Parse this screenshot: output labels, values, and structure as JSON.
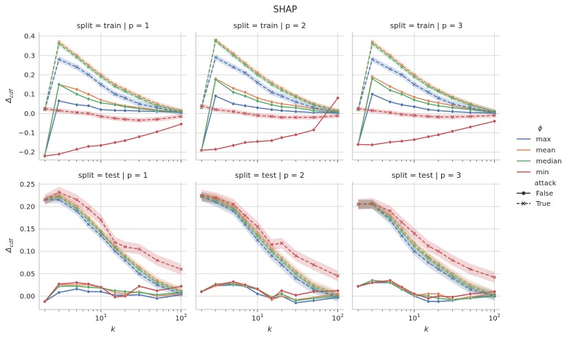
{
  "figure": {
    "suptitle": "SHAP",
    "xlabel": "k",
    "ylabel": "Δ",
    "ylabel_sub": "cdf",
    "x_tick_base": "10",
    "x_tick_exps": [
      "1",
      "2"
    ]
  },
  "legend": {
    "title": "ϕ",
    "phi": [
      {
        "label": "max",
        "color": "#4c72b0"
      },
      {
        "label": "mean",
        "color": "#dd8452"
      },
      {
        "label": "median",
        "color": "#55a868"
      },
      {
        "label": "min",
        "color": "#c44e52"
      }
    ],
    "attack_title": "attack",
    "attack": [
      {
        "label": "False",
        "marker": "circle",
        "dashed": false
      },
      {
        "label": "True",
        "marker": "x",
        "dashed": true
      }
    ]
  },
  "chart_data": {
    "type": "line",
    "x": [
      2,
      3,
      5,
      7,
      10,
      15,
      20,
      30,
      50,
      100
    ],
    "xscale": "log",
    "xlim": [
      1.7,
      118
    ],
    "rows": [
      {
        "ylim": [
          -0.24,
          0.42
        ],
        "yticks": [
          -0.2,
          -0.1,
          0.0,
          0.1,
          0.2,
          0.3,
          0.4
        ],
        "ytick_labels": [
          "−0.2",
          "−0.1",
          "0.0",
          "0.1",
          "0.2",
          "0.3",
          "0.4"
        ]
      },
      {
        "ylim": [
          -0.03,
          0.255
        ],
        "yticks": [
          0.0,
          0.05,
          0.1,
          0.15,
          0.2,
          0.25
        ],
        "ytick_labels": [
          "0.00",
          "0.05",
          "0.10",
          "0.15",
          "0.20",
          "0.25"
        ]
      }
    ],
    "panels": [
      {
        "title": "split = train | p = 1",
        "row": 0,
        "col": 0,
        "series": [
          {
            "phi": "max",
            "attack": "False",
            "values": [
              -0.215,
              0.065,
              0.045,
              0.04,
              0.02,
              0.016,
              0.015,
              0.013,
              0.01,
              0.005
            ],
            "band": 0.003
          },
          {
            "phi": "mean",
            "attack": "False",
            "values": [
              -0.215,
              0.15,
              0.125,
              0.1,
              0.07,
              0.05,
              0.04,
              0.03,
              0.018,
              0.008
            ],
            "band": 0.003
          },
          {
            "phi": "median",
            "attack": "False",
            "values": [
              -0.215,
              0.15,
              0.1,
              0.075,
              0.055,
              0.045,
              0.035,
              0.025,
              0.015,
              0.005
            ],
            "band": 0.003
          },
          {
            "phi": "min",
            "attack": "False",
            "values": [
              -0.22,
              -0.21,
              -0.185,
              -0.17,
              -0.165,
              -0.15,
              -0.14,
              -0.12,
              -0.095,
              -0.055
            ],
            "band": 0.003
          },
          {
            "phi": "max",
            "attack": "True",
            "values": [
              0.02,
              0.28,
              0.24,
              0.2,
              0.15,
              0.1,
              0.08,
              0.05,
              0.03,
              0.005
            ],
            "band": 0.015
          },
          {
            "phi": "mean",
            "attack": "True",
            "values": [
              0.02,
              0.37,
              0.3,
              0.25,
              0.2,
              0.15,
              0.125,
              0.09,
              0.05,
              0.015
            ],
            "band": 0.012
          },
          {
            "phi": "median",
            "attack": "True",
            "values": [
              0.02,
              0.36,
              0.29,
              0.24,
              0.19,
              0.14,
              0.115,
              0.08,
              0.04,
              0.01
            ],
            "band": 0.012
          },
          {
            "phi": "min",
            "attack": "True",
            "values": [
              0.025,
              0.015,
              0.005,
              0.0,
              -0.015,
              -0.025,
              -0.03,
              -0.035,
              -0.03,
              -0.015
            ],
            "band": 0.012
          }
        ]
      },
      {
        "title": "split = train | p = 2",
        "row": 0,
        "col": 1,
        "series": [
          {
            "phi": "max",
            "attack": "False",
            "values": [
              -0.19,
              0.09,
              0.05,
              0.04,
              0.03,
              0.02,
              0.015,
              0.01,
              0.005,
              0.003
            ],
            "band": 0.003
          },
          {
            "phi": "mean",
            "attack": "False",
            "values": [
              -0.19,
              0.18,
              0.13,
              0.11,
              0.08,
              0.06,
              0.05,
              0.04,
              0.025,
              0.01
            ],
            "band": 0.003
          },
          {
            "phi": "median",
            "attack": "False",
            "values": [
              -0.19,
              0.175,
              0.11,
              0.09,
              0.065,
              0.045,
              0.035,
              0.03,
              0.015,
              0.005
            ],
            "band": 0.003
          },
          {
            "phi": "min",
            "attack": "False",
            "values": [
              -0.19,
              -0.185,
              -0.165,
              -0.15,
              -0.145,
              -0.14,
              -0.125,
              -0.11,
              -0.085,
              0.08
            ],
            "band": 0.003
          },
          {
            "phi": "max",
            "attack": "True",
            "values": [
              0.03,
              0.29,
              0.24,
              0.21,
              0.16,
              0.11,
              0.09,
              0.06,
              0.03,
              0.005
            ],
            "band": 0.015
          },
          {
            "phi": "mean",
            "attack": "True",
            "values": [
              0.03,
              0.38,
              0.31,
              0.26,
              0.21,
              0.16,
              0.13,
              0.09,
              0.05,
              0.015
            ],
            "band": 0.012
          },
          {
            "phi": "median",
            "attack": "True",
            "values": [
              0.03,
              0.375,
              0.3,
              0.25,
              0.2,
              0.15,
              0.12,
              0.085,
              0.045,
              0.01
            ],
            "band": 0.012
          },
          {
            "phi": "min",
            "attack": "True",
            "values": [
              0.04,
              0.02,
              0.01,
              0.0,
              -0.01,
              -0.015,
              -0.02,
              -0.02,
              -0.02,
              -0.012
            ],
            "band": 0.012
          }
        ]
      },
      {
        "title": "split = train | p = 3",
        "row": 0,
        "col": 2,
        "series": [
          {
            "phi": "max",
            "attack": "False",
            "values": [
              -0.16,
              0.1,
              0.06,
              0.045,
              0.035,
              0.02,
              0.015,
              0.01,
              0.005,
              0.003
            ],
            "band": 0.003
          },
          {
            "phi": "mean",
            "attack": "False",
            "values": [
              -0.16,
              0.19,
              0.14,
              0.11,
              0.085,
              0.065,
              0.055,
              0.04,
              0.025,
              0.01
            ],
            "band": 0.003
          },
          {
            "phi": "median",
            "attack": "False",
            "values": [
              -0.16,
              0.18,
              0.12,
              0.1,
              0.07,
              0.05,
              0.04,
              0.03,
              0.02,
              0.005
            ],
            "band": 0.003
          },
          {
            "phi": "min",
            "attack": "False",
            "values": [
              -0.16,
              -0.162,
              -0.148,
              -0.143,
              -0.135,
              -0.12,
              -0.11,
              -0.092,
              -0.07,
              -0.04
            ],
            "band": 0.003
          },
          {
            "phi": "max",
            "attack": "True",
            "values": [
              0.02,
              0.28,
              0.23,
              0.2,
              0.15,
              0.11,
              0.08,
              0.05,
              0.03,
              0.005
            ],
            "band": 0.015
          },
          {
            "phi": "mean",
            "attack": "True",
            "values": [
              0.02,
              0.37,
              0.3,
              0.25,
              0.2,
              0.15,
              0.12,
              0.085,
              0.05,
              0.01
            ],
            "band": 0.012
          },
          {
            "phi": "median",
            "attack": "True",
            "values": [
              0.02,
              0.36,
              0.29,
              0.24,
              0.19,
              0.14,
              0.115,
              0.08,
              0.045,
              0.01
            ],
            "band": 0.012
          },
          {
            "phi": "min",
            "attack": "True",
            "values": [
              0.025,
              0.015,
              0.005,
              -0.005,
              -0.01,
              -0.015,
              -0.018,
              -0.018,
              -0.015,
              -0.01
            ],
            "band": 0.012
          }
        ]
      },
      {
        "title": "split = test | p = 1",
        "row": 1,
        "col": 0,
        "series": [
          {
            "phi": "max",
            "attack": "False",
            "values": [
              -0.012,
              0.008,
              0.016,
              0.01,
              0.01,
              0.002,
              0.002,
              0.003,
              -0.005,
              0.003
            ],
            "band": 0.002
          },
          {
            "phi": "mean",
            "attack": "False",
            "values": [
              -0.012,
              0.025,
              0.025,
              0.025,
              0.02,
              0.008,
              0.005,
              0.01,
              0.0,
              0.005
            ],
            "band": 0.002
          },
          {
            "phi": "median",
            "attack": "False",
            "values": [
              -0.012,
              0.022,
              0.022,
              0.02,
              0.018,
              0.012,
              0.01,
              0.008,
              0.003,
              0.008
            ],
            "band": 0.002
          },
          {
            "phi": "min",
            "attack": "False",
            "values": [
              -0.012,
              0.027,
              0.03,
              0.027,
              0.02,
              -0.002,
              0.0,
              0.022,
              0.012,
              0.022
            ],
            "band": 0.002
          },
          {
            "phi": "max",
            "attack": "True",
            "values": [
              0.215,
              0.215,
              0.19,
              0.16,
              0.135,
              0.1,
              0.08,
              0.05,
              0.025,
              0.005
            ],
            "band": 0.008
          },
          {
            "phi": "mean",
            "attack": "True",
            "values": [
              0.215,
              0.225,
              0.2,
              0.175,
              0.145,
              0.11,
              0.09,
              0.065,
              0.035,
              0.012
            ],
            "band": 0.008
          },
          {
            "phi": "median",
            "attack": "True",
            "values": [
              0.215,
              0.222,
              0.195,
              0.17,
              0.142,
              0.108,
              0.087,
              0.06,
              0.03,
              0.01
            ],
            "band": 0.008
          },
          {
            "phi": "min",
            "attack": "True",
            "values": [
              0.215,
              0.232,
              0.215,
              0.195,
              0.17,
              0.12,
              0.11,
              0.105,
              0.08,
              0.06
            ],
            "band": 0.012
          }
        ]
      },
      {
        "title": "split = test | p = 2",
        "row": 1,
        "col": 1,
        "series": [
          {
            "phi": "max",
            "attack": "False",
            "values": [
              0.01,
              0.023,
              0.025,
              0.022,
              0.005,
              -0.005,
              0.0,
              -0.015,
              -0.01,
              -0.003
            ],
            "band": 0.002
          },
          {
            "phi": "mean",
            "attack": "False",
            "values": [
              0.01,
              0.023,
              0.03,
              0.022,
              0.015,
              -0.008,
              0.0,
              -0.008,
              -0.003,
              0.005
            ],
            "band": 0.002
          },
          {
            "phi": "median",
            "attack": "False",
            "values": [
              0.01,
              0.027,
              0.027,
              0.022,
              0.015,
              -0.002,
              0.005,
              -0.01,
              -0.005,
              0.0
            ],
            "band": 0.002
          },
          {
            "phi": "min",
            "attack": "False",
            "values": [
              0.01,
              0.025,
              0.032,
              0.025,
              0.016,
              -0.005,
              0.012,
              0.002,
              0.01,
              0.012
            ],
            "band": 0.002
          },
          {
            "phi": "max",
            "attack": "True",
            "values": [
              0.222,
              0.21,
              0.19,
              0.16,
              0.125,
              0.09,
              0.07,
              0.04,
              0.015,
              -0.002
            ],
            "band": 0.01
          },
          {
            "phi": "mean",
            "attack": "True",
            "values": [
              0.222,
              0.218,
              0.2,
              0.17,
              0.14,
              0.105,
              0.085,
              0.055,
              0.025,
              0.003
            ],
            "band": 0.01
          },
          {
            "phi": "median",
            "attack": "True",
            "values": [
              0.222,
              0.215,
              0.195,
              0.165,
              0.135,
              0.1,
              0.08,
              0.05,
              0.02,
              0.0
            ],
            "band": 0.01
          },
          {
            "phi": "min",
            "attack": "True",
            "values": [
              0.225,
              0.22,
              0.205,
              0.18,
              0.155,
              0.115,
              0.118,
              0.09,
              0.07,
              0.045
            ],
            "band": 0.012
          }
        ]
      },
      {
        "title": "split = test | p = 3",
        "row": 1,
        "col": 2,
        "series": [
          {
            "phi": "max",
            "attack": "False",
            "values": [
              0.022,
              0.03,
              0.03,
              0.015,
              0.0,
              -0.012,
              -0.012,
              -0.01,
              -0.002,
              0.0
            ],
            "band": 0.002
          },
          {
            "phi": "mean",
            "attack": "False",
            "values": [
              0.022,
              0.035,
              0.032,
              0.018,
              0.002,
              0.005,
              0.005,
              -0.008,
              -0.002,
              0.005
            ],
            "band": 0.002
          },
          {
            "phi": "median",
            "attack": "False",
            "values": [
              0.022,
              0.035,
              0.03,
              0.015,
              0.002,
              0.0,
              -0.005,
              -0.008,
              -0.005,
              0.0
            ],
            "band": 0.002
          },
          {
            "phi": "min",
            "attack": "False",
            "values": [
              0.022,
              0.03,
              0.035,
              0.02,
              0.005,
              -0.005,
              0.0,
              -0.002,
              0.005,
              0.01
            ],
            "band": 0.002
          },
          {
            "phi": "max",
            "attack": "True",
            "values": [
              0.205,
              0.205,
              0.17,
              0.135,
              0.1,
              0.075,
              0.06,
              0.04,
              0.015,
              0.0
            ],
            "band": 0.01
          },
          {
            "phi": "mean",
            "attack": "True",
            "values": [
              0.205,
              0.205,
              0.18,
              0.15,
              0.118,
              0.088,
              0.072,
              0.05,
              0.025,
              0.003
            ],
            "band": 0.01
          },
          {
            "phi": "median",
            "attack": "True",
            "values": [
              0.205,
              0.205,
              0.175,
              0.145,
              0.112,
              0.085,
              0.068,
              0.045,
              0.02,
              0.002
            ],
            "band": 0.01
          },
          {
            "phi": "min",
            "attack": "True",
            "values": [
              0.205,
              0.207,
              0.19,
              0.165,
              0.14,
              0.112,
              0.1,
              0.08,
              0.06,
              0.042
            ],
            "band": 0.012
          }
        ]
      }
    ]
  }
}
